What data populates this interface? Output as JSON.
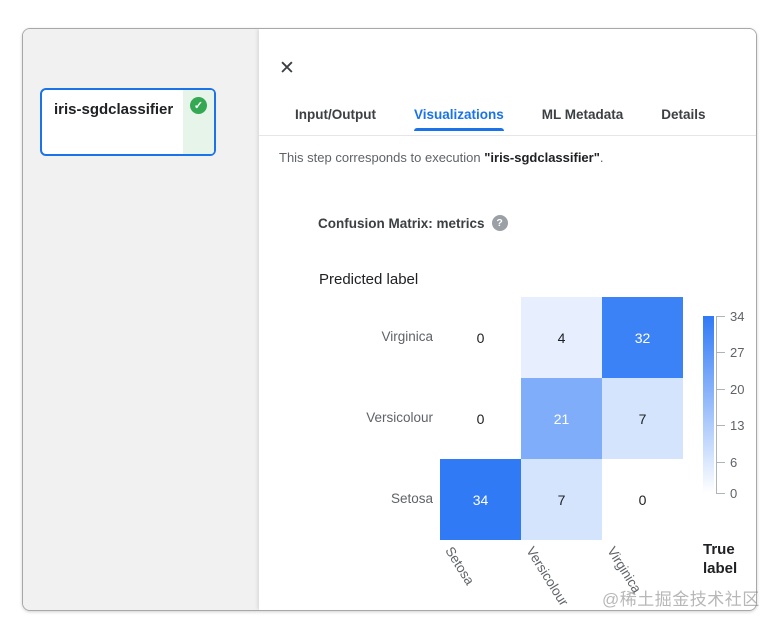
{
  "sidebar": {
    "node_card": {
      "label": "iris-sgdclassifier",
      "status": "succeeded",
      "status_icon": "check-circle-icon",
      "status_color": "#34a853",
      "check_glyph": "✓",
      "selected_border_color": "#1a73e8"
    }
  },
  "panel": {
    "close_icon": "✕",
    "tabs": [
      {
        "label": "Input/Output",
        "active": false
      },
      {
        "label": "Visualizations",
        "active": true
      },
      {
        "label": "ML Metadata",
        "active": false
      },
      {
        "label": "Details",
        "active": false
      }
    ],
    "active_tab_color": "#1a73e8",
    "description_prefix": "This step corresponds to execution ",
    "description_emphasis": "\"iris-sgdclassifier\"",
    "description_suffix": ".",
    "section_title": "Confusion Matrix: metrics",
    "help_icon": "?"
  },
  "chart_data": {
    "type": "heatmap",
    "title": "Confusion Matrix: metrics",
    "row_axis_title": "Predicted label",
    "col_axis_title": "True label",
    "rows": [
      "Virginica",
      "Versicolour",
      "Setosa"
    ],
    "columns": [
      "Setosa",
      "Versicolour",
      "Virginica"
    ],
    "values": [
      [
        0,
        4,
        32
      ],
      [
        0,
        21,
        7
      ],
      [
        34,
        7,
        0
      ]
    ],
    "vmin": 0,
    "vmax": 34,
    "color_min": "#ffffff",
    "color_max": "#307af6",
    "colorbar_ticks": [
      34,
      27,
      20,
      13,
      6,
      0
    ],
    "legend_position": "right",
    "grid": false
  },
  "watermark": "@稀土掘金技术社区"
}
